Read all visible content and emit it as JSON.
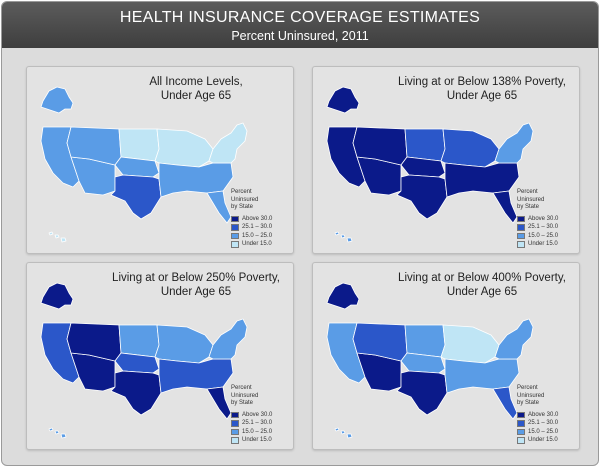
{
  "header": {
    "title": "HEALTH INSURANCE COVERAGE ESTIMATES",
    "subtitle": "Percent Uninsured, 2011"
  },
  "legend": {
    "caption": [
      "Percent",
      "Uninsured",
      "by State"
    ],
    "items": [
      {
        "label": "Above 30.0",
        "color": "#0b1a8a"
      },
      {
        "label": "25.1 – 30.0",
        "color": "#2b57c9"
      },
      {
        "label": "15.0 – 25.0",
        "color": "#5a9ce6"
      },
      {
        "label": "Under 15.0",
        "color": "#bfe5f5"
      }
    ]
  },
  "panels": [
    {
      "title_line1": "All Income Levels,",
      "title_line2": "Under Age 65",
      "levels": {
        "alaska": 2,
        "hawaii": 3,
        "west": 2,
        "southwest": 2,
        "mountain": 2,
        "north_plains": 3,
        "south_plains": 2,
        "texas": 1,
        "midwest": 3,
        "south": 2,
        "florida": 2,
        "northeast": 3
      }
    },
    {
      "title_line1": "Living at or Below 138% Poverty,",
      "title_line2": "Under Age 65",
      "levels": {
        "alaska": 0,
        "hawaii": 2,
        "west": 0,
        "southwest": 0,
        "mountain": 0,
        "north_plains": 1,
        "south_plains": 0,
        "texas": 0,
        "midwest": 1,
        "south": 0,
        "florida": 0,
        "northeast": 2
      }
    },
    {
      "title_line1": "Living at or Below 250% Poverty,",
      "title_line2": "Under Age 65",
      "levels": {
        "alaska": 0,
        "hawaii": 2,
        "west": 1,
        "southwest": 0,
        "mountain": 0,
        "north_plains": 2,
        "south_plains": 1,
        "texas": 0,
        "midwest": 2,
        "south": 1,
        "florida": 0,
        "northeast": 2
      }
    },
    {
      "title_line1": "Living at or Below 400% Poverty,",
      "title_line2": "Under Age 65",
      "levels": {
        "alaska": 0,
        "hawaii": 2,
        "west": 2,
        "southwest": 0,
        "mountain": 1,
        "north_plains": 2,
        "south_plains": 2,
        "texas": 0,
        "midwest": 3,
        "south": 2,
        "florida": 1,
        "northeast": 2
      }
    }
  ]
}
